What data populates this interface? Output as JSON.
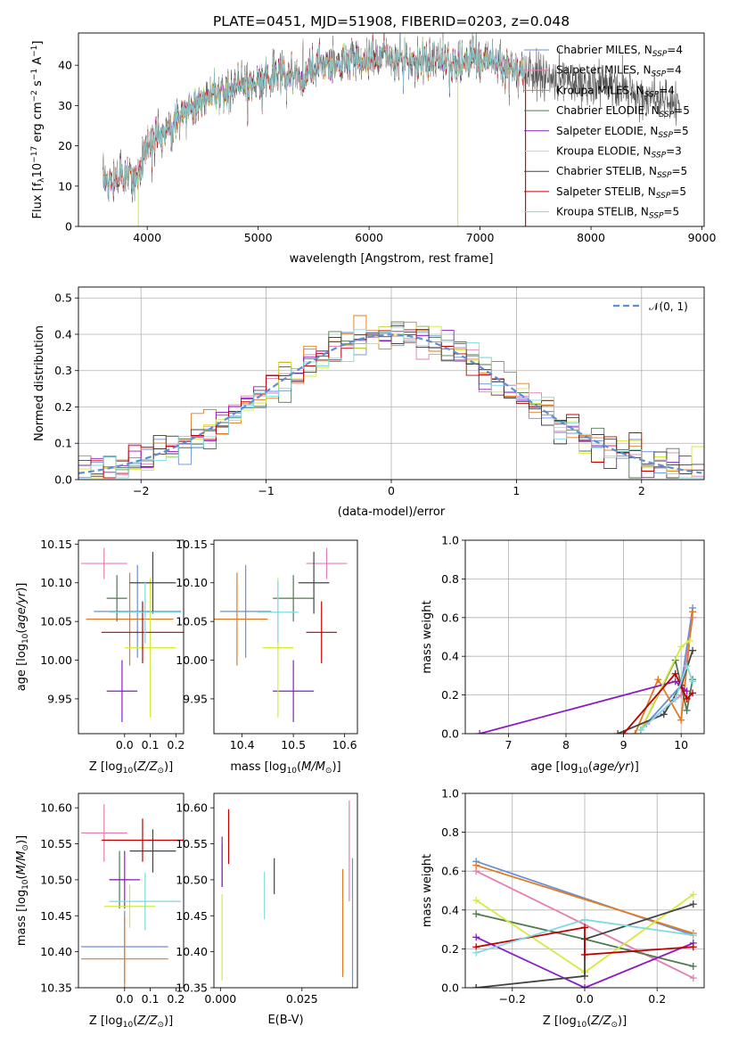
{
  "colors": {
    "chabrier_miles": "#6a8fd6",
    "salpeter_miles": "#e57fb3",
    "kroupa_miles": "#e07b22",
    "chabrier_elodie": "#4f7a4f",
    "salpeter_elodie": "#8a1bc4",
    "kroupa_elodie": "#d6ea3c",
    "chabrier_stelib": "#444444",
    "salpeter_stelib": "#c00000",
    "kroupa_stelib": "#7fd9e0",
    "gauss": "#5e8fd6",
    "grid": "#b0b0b0"
  },
  "chart_data": [
    {
      "id": "spectrum",
      "type": "line",
      "title": "PLATE=0451, MJD=51908, FIBERID=0203, z=0.048",
      "xlabel": "wavelength [Angstrom, rest frame]",
      "ylabel": "Flux [f_λ 10^-17 erg cm^-2 s^-1 A^-1]",
      "xlim": [
        3380,
        9020
      ],
      "ylim": [
        0,
        48
      ],
      "xticks": [
        4000,
        5000,
        6000,
        7000,
        8000,
        9000
      ],
      "yticks": [
        0,
        10,
        20,
        30,
        40
      ],
      "grid": false,
      "legend_position": "right",
      "series": [
        {
          "name": "Chabrier MILES, N_SSP=4",
          "color_key": "chabrier_miles"
        },
        {
          "name": "Salpeter MILES, N_SSP=4",
          "color_key": "salpeter_miles"
        },
        {
          "name": "Kroupa MILES, N_SSP=4",
          "color_key": "kroupa_miles"
        },
        {
          "name": "Chabrier ELODIE, N_SSP=5",
          "color_key": "chabrier_elodie"
        },
        {
          "name": "Salpeter ELODIE, N_SSP=5",
          "color_key": "salpeter_elodie"
        },
        {
          "name": "Kroupa ELODIE, N_SSP=3",
          "color_key": "kroupa_elodie"
        },
        {
          "name": "Chabrier STELIB, N_SSP=5",
          "color_key": "chabrier_stelib"
        },
        {
          "name": "Salpeter STELIB, N_SSP=5",
          "color_key": "salpeter_stelib"
        },
        {
          "name": "Kroupa STELIB, N_SSP=5",
          "color_key": "kroupa_stelib"
        }
      ],
      "continuum": {
        "x": [
          3600,
          3700,
          3800,
          3900,
          3950,
          4000,
          4100,
          4200,
          4300,
          4400,
          4500,
          4600,
          4700,
          4800,
          4900,
          5000,
          5100,
          5200,
          5300,
          5400,
          5500,
          5600,
          5700,
          5800,
          5900,
          6000,
          6200,
          6400,
          6600,
          6800,
          7000,
          7200,
          7400,
          7600,
          7800,
          8000,
          8200,
          8400,
          8600,
          8800
        ],
        "y": [
          12,
          11,
          13,
          12,
          16,
          20,
          23,
          25,
          27,
          30,
          32,
          33,
          33,
          35,
          36,
          36,
          37,
          38,
          38,
          37,
          39,
          40,
          40,
          41,
          42,
          42,
          42,
          41,
          41,
          40,
          42,
          40,
          38,
          37,
          36,
          35,
          35,
          33,
          32,
          31
        ]
      },
      "glitches": [
        {
          "x": 3920,
          "y": 0,
          "color_key": "kroupa_elodie"
        },
        {
          "x": 6800,
          "y": 0,
          "color_key": "kroupa_elodie"
        },
        {
          "x": 7410,
          "y": 0,
          "color_key": "salpeter_stelib"
        }
      ]
    },
    {
      "id": "residuals",
      "type": "line",
      "xlabel": "(data-model)/error",
      "ylabel": "Normed distribution",
      "xlim": [
        -2.5,
        2.5
      ],
      "ylim": [
        0,
        0.53
      ],
      "xticks": [
        -2,
        -1,
        0,
        1,
        2
      ],
      "yticks": [
        0.0,
        0.1,
        0.2,
        0.3,
        0.4,
        0.5
      ],
      "grid": true,
      "legend_position": "top-right",
      "legend": "𝒩(0, 1)",
      "bin_width": 0.1,
      "gauss_mean": 0,
      "gauss_sigma": 1
    },
    {
      "id": "z_age",
      "type": "scatter",
      "xlabel": "Z [log10(Z/Z⊙)]",
      "ylabel": "age  [log10(age/yr)]",
      "xlim": [
        -0.18,
        0.23
      ],
      "ylim": [
        9.905,
        10.155
      ],
      "xticks": [
        0.0,
        0.1,
        0.2
      ],
      "yticks": [
        9.95,
        10.0,
        10.05,
        10.1,
        10.15
      ],
      "grid": false,
      "points": [
        {
          "color_key": "chabrier_miles",
          "x": 0.05,
          "xerr": 0.17,
          "y": 10.063,
          "yerr": 0.06
        },
        {
          "color_key": "salpeter_miles",
          "x": -0.08,
          "xerr": 0.09,
          "y": 10.125,
          "yerr": 0.02
        },
        {
          "color_key": "kroupa_miles",
          "x": 0.02,
          "xerr": 0.17,
          "y": 10.053,
          "yerr": 0.06
        },
        {
          "color_key": "chabrier_elodie",
          "x": -0.03,
          "xerr": 0.04,
          "y": 10.08,
          "yerr": 0.03
        },
        {
          "color_key": "salpeter_elodie",
          "x": -0.01,
          "xerr": 0.06,
          "y": 9.96,
          "yerr": 0.04
        },
        {
          "color_key": "kroupa_elodie",
          "x": 0.1,
          "xerr": 0.1,
          "y": 10.016,
          "yerr": 0.09
        },
        {
          "color_key": "chabrier_stelib",
          "x": 0.11,
          "xerr": 0.09,
          "y": 10.1,
          "yerr": 0.04
        },
        {
          "color_key": "salpeter_stelib",
          "x": 0.07,
          "xerr": 0.16,
          "y": 10.036,
          "yerr": 0.04
        },
        {
          "color_key": "kroupa_stelib",
          "x": 0.08,
          "xerr": 0.14,
          "y": 10.062,
          "yerr": 0.04
        }
      ]
    },
    {
      "id": "mass_age",
      "type": "scatter",
      "xlabel": "mass [log10(M/M⊙)]",
      "ylabel": "",
      "xlim": [
        10.345,
        10.625
      ],
      "ylim": [
        9.905,
        10.155
      ],
      "xticks": [
        10.4,
        10.5,
        10.6
      ],
      "yticks": [
        9.95,
        10.0,
        10.05,
        10.1,
        10.15
      ],
      "grid": false,
      "points": [
        {
          "color_key": "chabrier_miles",
          "x": 10.407,
          "xerr": 0.05,
          "y": 10.063,
          "yerr": 0.06
        },
        {
          "color_key": "salpeter_miles",
          "x": 10.565,
          "xerr": 0.04,
          "y": 10.125,
          "yerr": 0.02
        },
        {
          "color_key": "kroupa_miles",
          "x": 10.39,
          "xerr": 0.06,
          "y": 10.053,
          "yerr": 0.06
        },
        {
          "color_key": "chabrier_elodie",
          "x": 10.5,
          "xerr": 0.04,
          "y": 10.08,
          "yerr": 0.03
        },
        {
          "color_key": "salpeter_elodie",
          "x": 10.5,
          "xerr": 0.04,
          "y": 9.96,
          "yerr": 0.04
        },
        {
          "color_key": "kroupa_elodie",
          "x": 10.47,
          "xerr": 0.03,
          "y": 10.016,
          "yerr": 0.09
        },
        {
          "color_key": "chabrier_stelib",
          "x": 10.54,
          "xerr": 0.03,
          "y": 10.1,
          "yerr": 0.04
        },
        {
          "color_key": "salpeter_stelib",
          "x": 10.555,
          "xerr": 0.03,
          "y": 10.036,
          "yerr": 0.04
        },
        {
          "color_key": "kroupa_stelib",
          "x": 10.47,
          "xerr": 0.04,
          "y": 10.062,
          "yerr": 0.04
        }
      ]
    },
    {
      "id": "age_weight",
      "type": "line",
      "xlabel": "age  [log10(age/yr)]",
      "ylabel": "mass weight",
      "xlim": [
        6.25,
        10.4
      ],
      "ylim": [
        0,
        1.0
      ],
      "xticks": [
        7,
        8,
        9,
        10
      ],
      "yticks": [
        0.0,
        0.2,
        0.4,
        0.6,
        0.8,
        1.0
      ],
      "grid": true,
      "series": [
        {
          "color_key": "chabrier_miles",
          "x": [
            9.3,
            10.0,
            10.2
          ],
          "y": [
            0.02,
            0.25,
            0.65
          ]
        },
        {
          "color_key": "salpeter_miles",
          "x": [
            9.4,
            10.0,
            10.2
          ],
          "y": [
            0.05,
            0.2,
            0.6
          ]
        },
        {
          "color_key": "kroupa_miles",
          "x": [
            9.2,
            9.6,
            10.0,
            10.2
          ],
          "y": [
            0.0,
            0.28,
            0.07,
            0.63
          ]
        },
        {
          "color_key": "chabrier_elodie",
          "x": [
            9.3,
            9.9,
            10.1,
            10.2
          ],
          "y": [
            0.02,
            0.38,
            0.12,
            0.28
          ]
        },
        {
          "color_key": "salpeter_elodie",
          "x": [
            6.5,
            9.9,
            10.1
          ],
          "y": [
            0.0,
            0.27,
            0.22
          ]
        },
        {
          "color_key": "kroupa_elodie",
          "x": [
            9.3,
            10.0,
            10.15
          ],
          "y": [
            0.02,
            0.45,
            0.48
          ]
        },
        {
          "color_key": "chabrier_stelib",
          "x": [
            8.9,
            9.7,
            10.0,
            10.2
          ],
          "y": [
            0.0,
            0.1,
            0.25,
            0.43
          ]
        },
        {
          "color_key": "salpeter_stelib",
          "x": [
            9.0,
            9.9,
            10.1,
            10.2
          ],
          "y": [
            0.0,
            0.31,
            0.18,
            0.21
          ]
        },
        {
          "color_key": "kroupa_stelib",
          "x": [
            9.3,
            9.9,
            10.1,
            10.2
          ],
          "y": [
            0.02,
            0.18,
            0.35,
            0.27
          ]
        }
      ]
    },
    {
      "id": "z_mass",
      "type": "scatter",
      "xlabel": "Z [log10(Z/Z⊙)]",
      "ylabel": "mass [log10(M/M⊙)]",
      "xlim": [
        -0.18,
        0.23
      ],
      "ylim": [
        10.35,
        10.62
      ],
      "xticks": [
        0.0,
        0.1,
        0.2
      ],
      "yticks": [
        10.35,
        10.4,
        10.45,
        10.5,
        10.55,
        10.6
      ],
      "grid": false,
      "points": [
        {
          "color_key": "chabrier_miles",
          "x": 0.0,
          "xerr": 0.17,
          "y": 10.407,
          "yerr": 0.05
        },
        {
          "color_key": "salpeter_miles",
          "x": -0.08,
          "xerr": 0.09,
          "y": 10.565,
          "yerr": 0.04
        },
        {
          "color_key": "kroupa_miles",
          "x": 0.0,
          "xerr": 0.17,
          "y": 10.39,
          "yerr": 0.06
        },
        {
          "color_key": "chabrier_elodie",
          "x": -0.02,
          "xerr": 0.04,
          "y": 10.5,
          "yerr": 0.04
        },
        {
          "color_key": "salpeter_elodie",
          "x": 0.0,
          "xerr": 0.06,
          "y": 10.5,
          "yerr": 0.04
        },
        {
          "color_key": "kroupa_elodie",
          "x": 0.02,
          "xerr": 0.1,
          "y": 10.463,
          "yerr": 0.03
        },
        {
          "color_key": "chabrier_stelib",
          "x": 0.11,
          "xerr": 0.09,
          "y": 10.54,
          "yerr": 0.03
        },
        {
          "color_key": "salpeter_stelib",
          "x": 0.07,
          "xerr": 0.16,
          "y": 10.555,
          "yerr": 0.03
        },
        {
          "color_key": "kroupa_stelib",
          "x": 0.08,
          "xerr": 0.14,
          "y": 10.47,
          "yerr": 0.04
        }
      ]
    },
    {
      "id": "ebv_mass",
      "type": "scatter",
      "xlabel": "E(B-V)",
      "ylabel": "",
      "xlim": [
        -0.002,
        0.042
      ],
      "ylim": [
        10.35,
        10.62
      ],
      "xticks": [
        0.0,
        0.025
      ],
      "yticks": [
        10.35,
        10.4,
        10.45,
        10.5,
        10.55,
        10.6
      ],
      "grid": false,
      "points": [
        {
          "color_key": "chabrier_miles",
          "x": 0.0405,
          "xerr": 0.0,
          "y": 10.44,
          "yerr": 0.09
        },
        {
          "color_key": "salpeter_miles",
          "x": 0.0395,
          "xerr": 0.0,
          "y": 10.54,
          "yerr": 0.07
        },
        {
          "color_key": "kroupa_miles",
          "x": 0.0375,
          "xerr": 0.0,
          "y": 10.44,
          "yerr": 0.075
        },
        {
          "color_key": "chabrier_elodie",
          "x": 0.0005,
          "xerr": 0.0,
          "y": 10.52,
          "yerr": 0.03
        },
        {
          "color_key": "salpeter_elodie",
          "x": 0.0005,
          "xerr": 0.0,
          "y": 10.525,
          "yerr": 0.035
        },
        {
          "color_key": "kroupa_elodie",
          "x": 0.0005,
          "xerr": 0.0,
          "y": 10.42,
          "yerr": 0.06
        },
        {
          "color_key": "chabrier_stelib",
          "x": 0.0165,
          "xerr": 0.0,
          "y": 10.505,
          "yerr": 0.025
        },
        {
          "color_key": "salpeter_stelib",
          "x": 0.0025,
          "xerr": 0.0,
          "y": 10.56,
          "yerr": 0.038
        },
        {
          "color_key": "kroupa_stelib",
          "x": 0.0135,
          "xerr": 0.0,
          "y": 10.478,
          "yerr": 0.033
        }
      ]
    },
    {
      "id": "z_weight",
      "type": "line",
      "xlabel": "Z [log10(Z/Z⊙)]",
      "ylabel": "mass weight",
      "xlim": [
        -0.33,
        0.33
      ],
      "ylim": [
        0,
        1.0
      ],
      "xticks": [
        -0.2,
        0.0,
        0.2
      ],
      "yticks": [
        0.0,
        0.2,
        0.4,
        0.6,
        0.8,
        1.0
      ],
      "grid": true,
      "series": [
        {
          "color_key": "chabrier_miles",
          "x": [
            -0.3,
            0.3
          ],
          "y": [
            0.65,
            0.27
          ]
        },
        {
          "color_key": "salpeter_miles",
          "x": [
            -0.3,
            0.3
          ],
          "y": [
            0.6,
            0.05
          ]
        },
        {
          "color_key": "kroupa_miles",
          "x": [
            -0.3,
            0.3
          ],
          "y": [
            0.63,
            0.28
          ]
        },
        {
          "color_key": "chabrier_elodie",
          "x": [
            -0.3,
            0.0,
            0.3
          ],
          "y": [
            0.38,
            0.25,
            0.11
          ]
        },
        {
          "color_key": "salpeter_elodie",
          "x": [
            -0.3,
            0.0,
            0.3
          ],
          "y": [
            0.26,
            0.0,
            0.23
          ]
        },
        {
          "color_key": "kroupa_elodie",
          "x": [
            -0.3,
            0.0,
            0.3
          ],
          "y": [
            0.45,
            0.08,
            0.48
          ]
        },
        {
          "color_key": "chabrier_stelib",
          "x": [
            -0.3,
            -0.3,
            0.0,
            0.0,
            0.3
          ],
          "y": [
            0.0,
            0.0,
            0.06,
            0.25,
            0.43
          ]
        },
        {
          "color_key": "salpeter_stelib",
          "x": [
            -0.3,
            0.0,
            0.0,
            0.3
          ],
          "y": [
            0.21,
            0.31,
            0.17,
            0.21
          ]
        },
        {
          "color_key": "kroupa_stelib",
          "x": [
            -0.3,
            0.0,
            0.3
          ],
          "y": [
            0.18,
            0.35,
            0.27
          ]
        }
      ]
    }
  ]
}
